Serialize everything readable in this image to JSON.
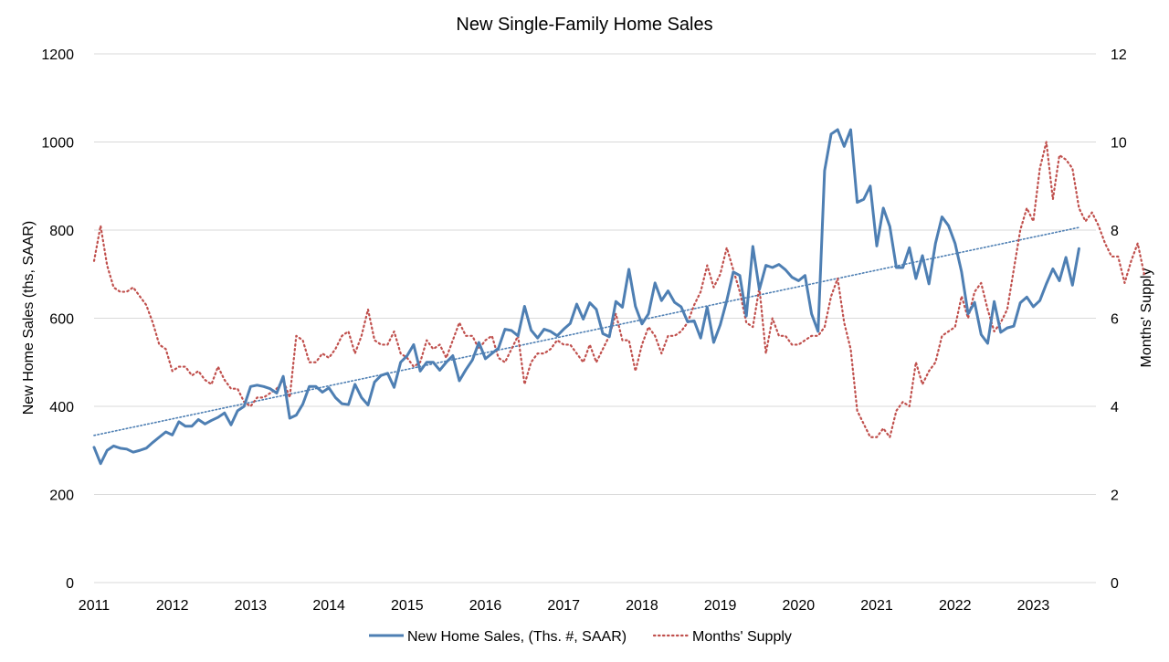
{
  "chart_data": {
    "type": "line",
    "title": "New Single-Family Home Sales",
    "ylabel_left": "New Home Sales (ths, SAAR)",
    "ylabel_right": "Months' Supply",
    "x_ticks": [
      "2011",
      "2012",
      "2013",
      "2014",
      "2015",
      "2016",
      "2017",
      "2018",
      "2019",
      "2020",
      "2021",
      "2022",
      "2023"
    ],
    "x_range": [
      2011,
      2023.8
    ],
    "y_left_range": [
      0,
      1200
    ],
    "y_left_ticks": [
      "0",
      "200",
      "400",
      "600",
      "800",
      "1000",
      "1200"
    ],
    "y_right_range": [
      0,
      12
    ],
    "y_right_ticks": [
      "0",
      "2",
      "4",
      "6",
      "8",
      "10",
      "12"
    ],
    "grid": true,
    "legend_position": "bottom",
    "colors": {
      "sales": "#4e7fb3",
      "supply": "#c0504d",
      "trend": "#4e7fb3",
      "grid": "#d9d9d9"
    },
    "series": [
      {
        "name": "New Home Sales, (Ths. #, SAAR)",
        "axis": "left",
        "style": "solid",
        "start": "2011-01",
        "values": [
          307,
          270,
          300,
          310,
          305,
          303,
          296,
          300,
          305,
          318,
          330,
          342,
          335,
          365,
          355,
          355,
          370,
          360,
          368,
          375,
          385,
          358,
          390,
          400,
          445,
          448,
          445,
          440,
          430,
          468,
          373,
          380,
          405,
          445,
          445,
          432,
          442,
          420,
          406,
          404,
          450,
          420,
          403,
          455,
          470,
          475,
          443,
          500,
          515,
          540,
          480,
          500,
          500,
          482,
          500,
          515,
          458,
          483,
          505,
          545,
          508,
          520,
          532,
          575,
          572,
          560,
          627,
          573,
          555,
          575,
          570,
          560,
          575,
          588,
          632,
          598,
          635,
          620,
          565,
          558,
          638,
          625,
          711,
          627,
          587,
          610,
          680,
          640,
          662,
          636,
          626,
          592,
          594,
          555,
          625,
          545,
          585,
          640,
          705,
          697,
          605,
          763,
          665,
          720,
          715,
          722,
          710,
          693,
          685,
          697,
          610,
          570,
          935,
          1018,
          1028,
          990,
          1028,
          863,
          870,
          900,
          764,
          850,
          808,
          715,
          715,
          760,
          690,
          742,
          678,
          770,
          830,
          810,
          770,
          705,
          610,
          636,
          563,
          543,
          638,
          568,
          578,
          582,
          635,
          648,
          626,
          640,
          678,
          712,
          685,
          738,
          675,
          758
        ]
      },
      {
        "name": "Months' Supply",
        "axis": "right",
        "style": "dotted",
        "start": "2011-01",
        "values": [
          7.3,
          8.1,
          7.2,
          6.7,
          6.6,
          6.6,
          6.7,
          6.5,
          6.3,
          5.9,
          5.4,
          5.3,
          4.8,
          4.9,
          4.9,
          4.7,
          4.8,
          4.6,
          4.5,
          4.9,
          4.6,
          4.4,
          4.4,
          4.1,
          4.0,
          4.2,
          4.2,
          4.3,
          4.4,
          4.6,
          4.2,
          5.6,
          5.5,
          5.0,
          5.0,
          5.2,
          5.1,
          5.3,
          5.6,
          5.7,
          5.2,
          5.6,
          6.2,
          5.5,
          5.4,
          5.4,
          5.7,
          5.2,
          5.1,
          4.9,
          5.0,
          5.5,
          5.3,
          5.4,
          5.1,
          5.5,
          5.9,
          5.6,
          5.6,
          5.3,
          5.5,
          5.6,
          5.1,
          5.0,
          5.3,
          5.6,
          4.5,
          5.0,
          5.2,
          5.2,
          5.3,
          5.5,
          5.4,
          5.4,
          5.2,
          5.0,
          5.4,
          5.0,
          5.3,
          5.6,
          6.1,
          5.5,
          5.5,
          4.8,
          5.4,
          5.8,
          5.6,
          5.2,
          5.6,
          5.6,
          5.7,
          5.9,
          6.3,
          6.6,
          7.2,
          6.7,
          7.0,
          7.6,
          7.1,
          6.6,
          5.9,
          5.8,
          6.7,
          5.2,
          6.0,
          5.6,
          5.6,
          5.4,
          5.4,
          5.5,
          5.6,
          5.6,
          5.8,
          6.5,
          6.9,
          5.9,
          5.3,
          3.9,
          3.6,
          3.3,
          3.3,
          3.5,
          3.3,
          3.9,
          4.1,
          4.0,
          5.0,
          4.5,
          4.8,
          5.0,
          5.6,
          5.7,
          5.8,
          6.5,
          6.0,
          6.6,
          6.8,
          6.2,
          5.7,
          5.9,
          6.2,
          7.1,
          8.0,
          8.5,
          8.2,
          9.4,
          10.0,
          8.7,
          9.7,
          9.6,
          9.4,
          8.5,
          8.2,
          8.4,
          8.1,
          7.7,
          7.4,
          7.4,
          6.8,
          7.3,
          7.7,
          7.0
        ]
      }
    ],
    "trendline": {
      "series": "New Home Sales, (Ths. #, SAAR)",
      "style": "dotted",
      "start_value": 334,
      "end_value": 806
    }
  }
}
